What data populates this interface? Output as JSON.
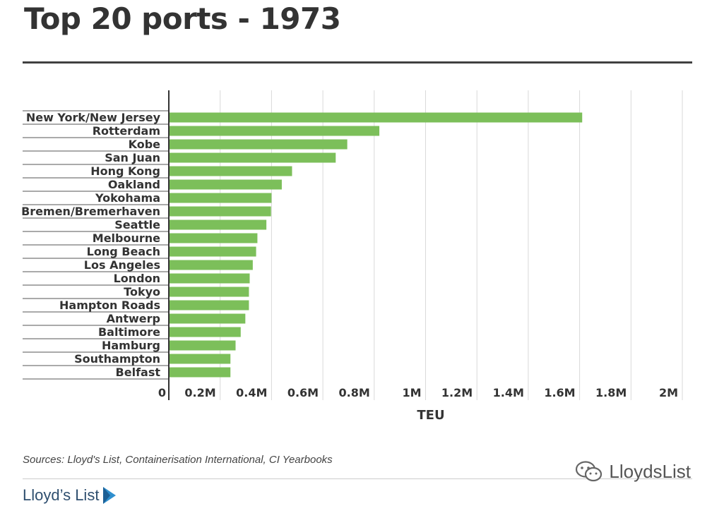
{
  "title": "Top 20 ports - 1973",
  "source": "Sources: Lloyd's List, Containerisation International, CI Yearbooks",
  "logo_text": "Lloyd’s List",
  "watermark_text": "LloydsList",
  "colors": {
    "bar": "#7cbf5a",
    "title": "#333333",
    "axis": "#333333",
    "grid": "#d9d9d9"
  },
  "chart_data": {
    "type": "bar",
    "orientation": "horizontal",
    "title": "Top 20 ports - 1973",
    "xlabel": "TEU",
    "ylabel": "",
    "xlim": [
      0,
      2000000
    ],
    "grid": true,
    "categories": [
      "New York/New Jersey",
      "Rotterdam",
      "Kobe",
      "San Juan",
      "Hong Kong",
      "Oakland",
      "Yokohama",
      "Bremen/Bremerhaven",
      "Seattle",
      "Melbourne",
      "Long Beach",
      "Los Angeles",
      "London",
      "Tokyo",
      "Hampton Roads",
      "Antwerp",
      "Baltimore",
      "Hamburg",
      "Southampton",
      "Belfast"
    ],
    "values": [
      1610000,
      820000,
      695000,
      650000,
      480000,
      440000,
      400000,
      398000,
      380000,
      345000,
      340000,
      327000,
      315000,
      312000,
      312000,
      298000,
      280000,
      260000,
      240000,
      240000
    ],
    "xticks": [
      0,
      200000,
      400000,
      600000,
      800000,
      1000000,
      1200000,
      1400000,
      1600000,
      1800000,
      2000000
    ],
    "xtick_labels": [
      "0",
      "0.2M",
      "0.4M",
      "0.6M",
      "0.8M",
      "1M",
      "1.2M",
      "1.4M",
      "1.6M",
      "1.8M",
      "2M"
    ]
  }
}
